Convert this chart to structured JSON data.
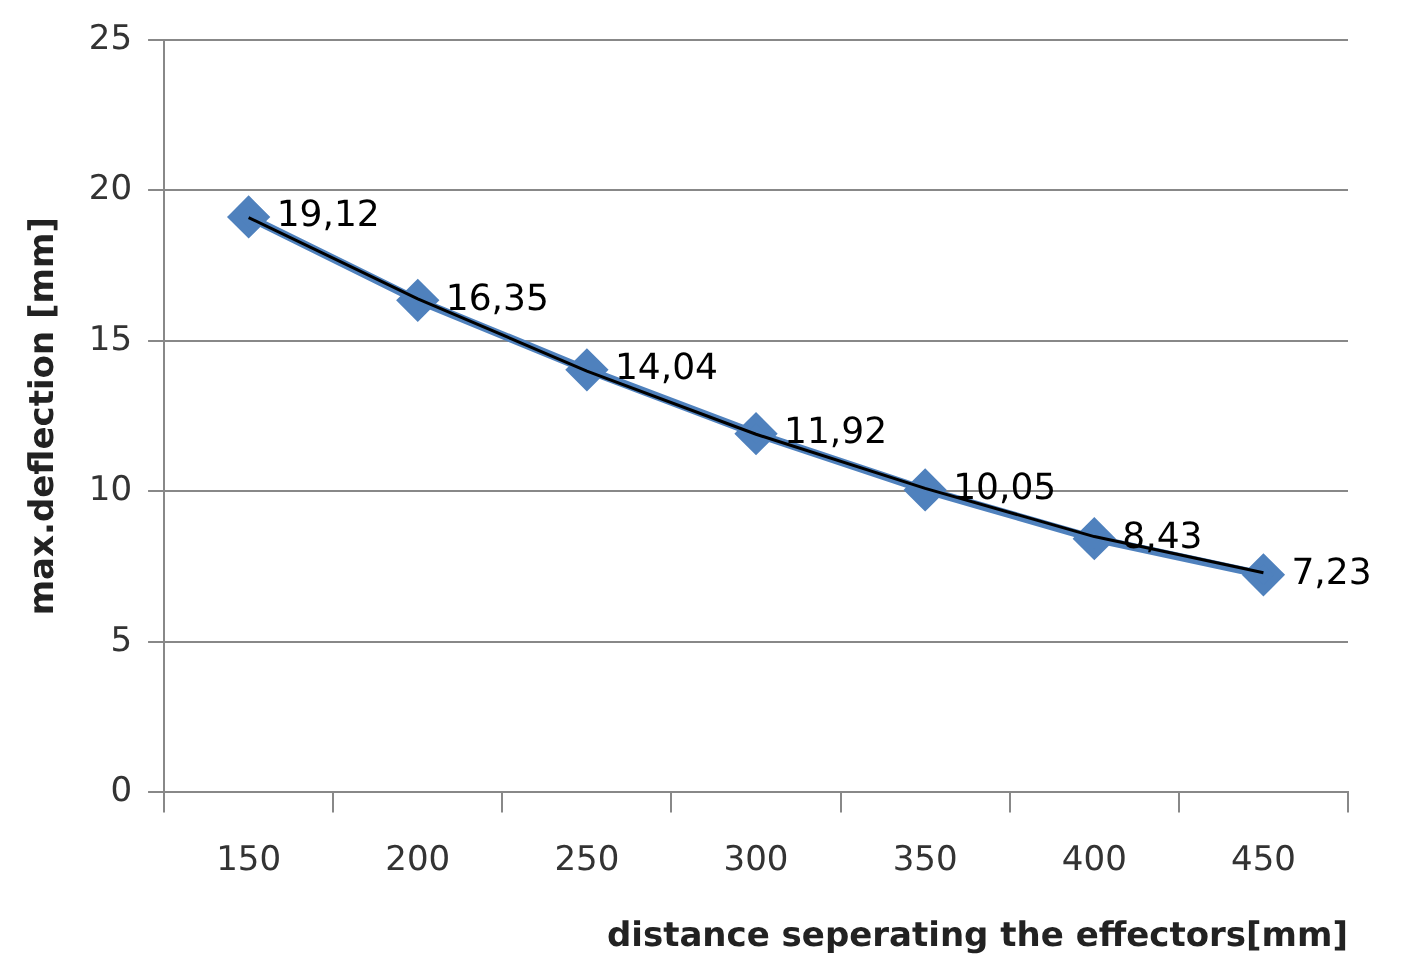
{
  "chart_data": {
    "type": "line",
    "xlabel": "distance seperating the effectors[mm]",
    "ylabel": "max.deflection [mm]",
    "categories": [
      "150",
      "200",
      "250",
      "300",
      "350",
      "400",
      "450"
    ],
    "series": [
      {
        "color": "#4f81bd",
        "values": [
          19.12,
          16.35,
          14.04,
          11.92,
          10.05,
          8.43,
          7.23
        ],
        "value_labels": [
          "19,12",
          "16,35",
          "14,04",
          "11,92",
          "10,05",
          "8,43",
          "7,23"
        ],
        "marker": "diamond"
      },
      {
        "type": "line",
        "color": "#000000",
        "x": [
          "150",
          "200",
          "250",
          "300",
          "350",
          "400",
          "450"
        ],
        "values": [
          19.1,
          16.4,
          14.0,
          11.9,
          10.1,
          8.5,
          7.3
        ],
        "marker": "none"
      }
    ],
    "ylim": [
      0,
      25
    ],
    "yticks": [
      0,
      5,
      10,
      15,
      20,
      25
    ],
    "grid": "y",
    "legend": false
  }
}
